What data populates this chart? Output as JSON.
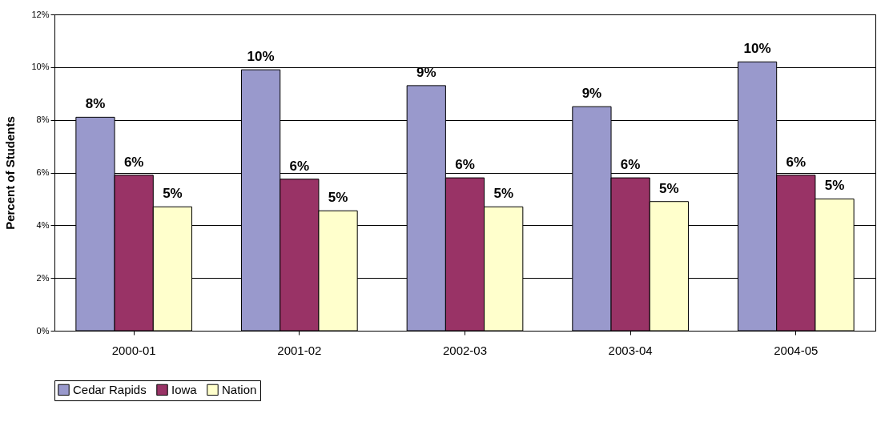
{
  "chart_data": {
    "type": "bar",
    "ylabel": "Percent of Students",
    "categories": [
      "2000-01",
      "2001-02",
      "2002-03",
      "2003-04",
      "2004-05"
    ],
    "series": [
      {
        "name": "Cedar Rapids",
        "color": "#9999cc",
        "values": [
          8.1,
          9.9,
          9.3,
          8.5,
          10.2
        ],
        "value_labels": [
          "8%",
          "10%",
          "9%",
          "9%",
          "10%"
        ]
      },
      {
        "name": "Iowa",
        "color": "#993366",
        "values": [
          5.9,
          5.75,
          5.8,
          5.8,
          5.9
        ],
        "value_labels": [
          "6%",
          "6%",
          "6%",
          "6%",
          "6%"
        ]
      },
      {
        "name": "Nation",
        "color": "#ffffcc",
        "values": [
          4.7,
          4.55,
          4.7,
          4.9,
          5.0
        ],
        "value_labels": [
          "5%",
          "5%",
          "5%",
          "5%",
          "5%"
        ]
      }
    ],
    "ylim": [
      0,
      12
    ],
    "yticks": [
      {
        "value": 0,
        "label": "0%"
      },
      {
        "value": 2,
        "label": "2%"
      },
      {
        "value": 4,
        "label": "4%"
      },
      {
        "value": 6,
        "label": "6%"
      },
      {
        "value": 8,
        "label": "8%"
      },
      {
        "value": 10,
        "label": "10%"
      },
      {
        "value": 12,
        "label": "12%"
      }
    ],
    "grid": "y",
    "legend": "bottom"
  }
}
